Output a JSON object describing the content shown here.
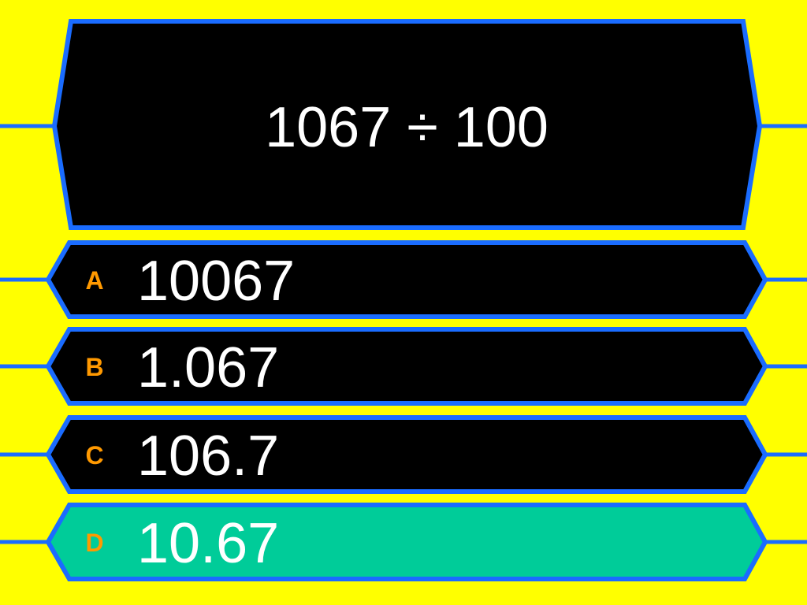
{
  "question": {
    "text": "1067 ÷ 100"
  },
  "answers": [
    {
      "letter": "A",
      "text": "10067",
      "selected": false
    },
    {
      "letter": "B",
      "text": "1.067",
      "selected": false
    },
    {
      "letter": "C",
      "text": "106.7",
      "selected": false
    },
    {
      "letter": "D",
      "text": "10.67",
      "selected": true
    }
  ],
  "colors": {
    "background": "#ffff00",
    "border": "#1a6cff",
    "box": "#000000",
    "selected": "#00cc99",
    "letter": "#ff9900",
    "text": "#ffffff"
  }
}
